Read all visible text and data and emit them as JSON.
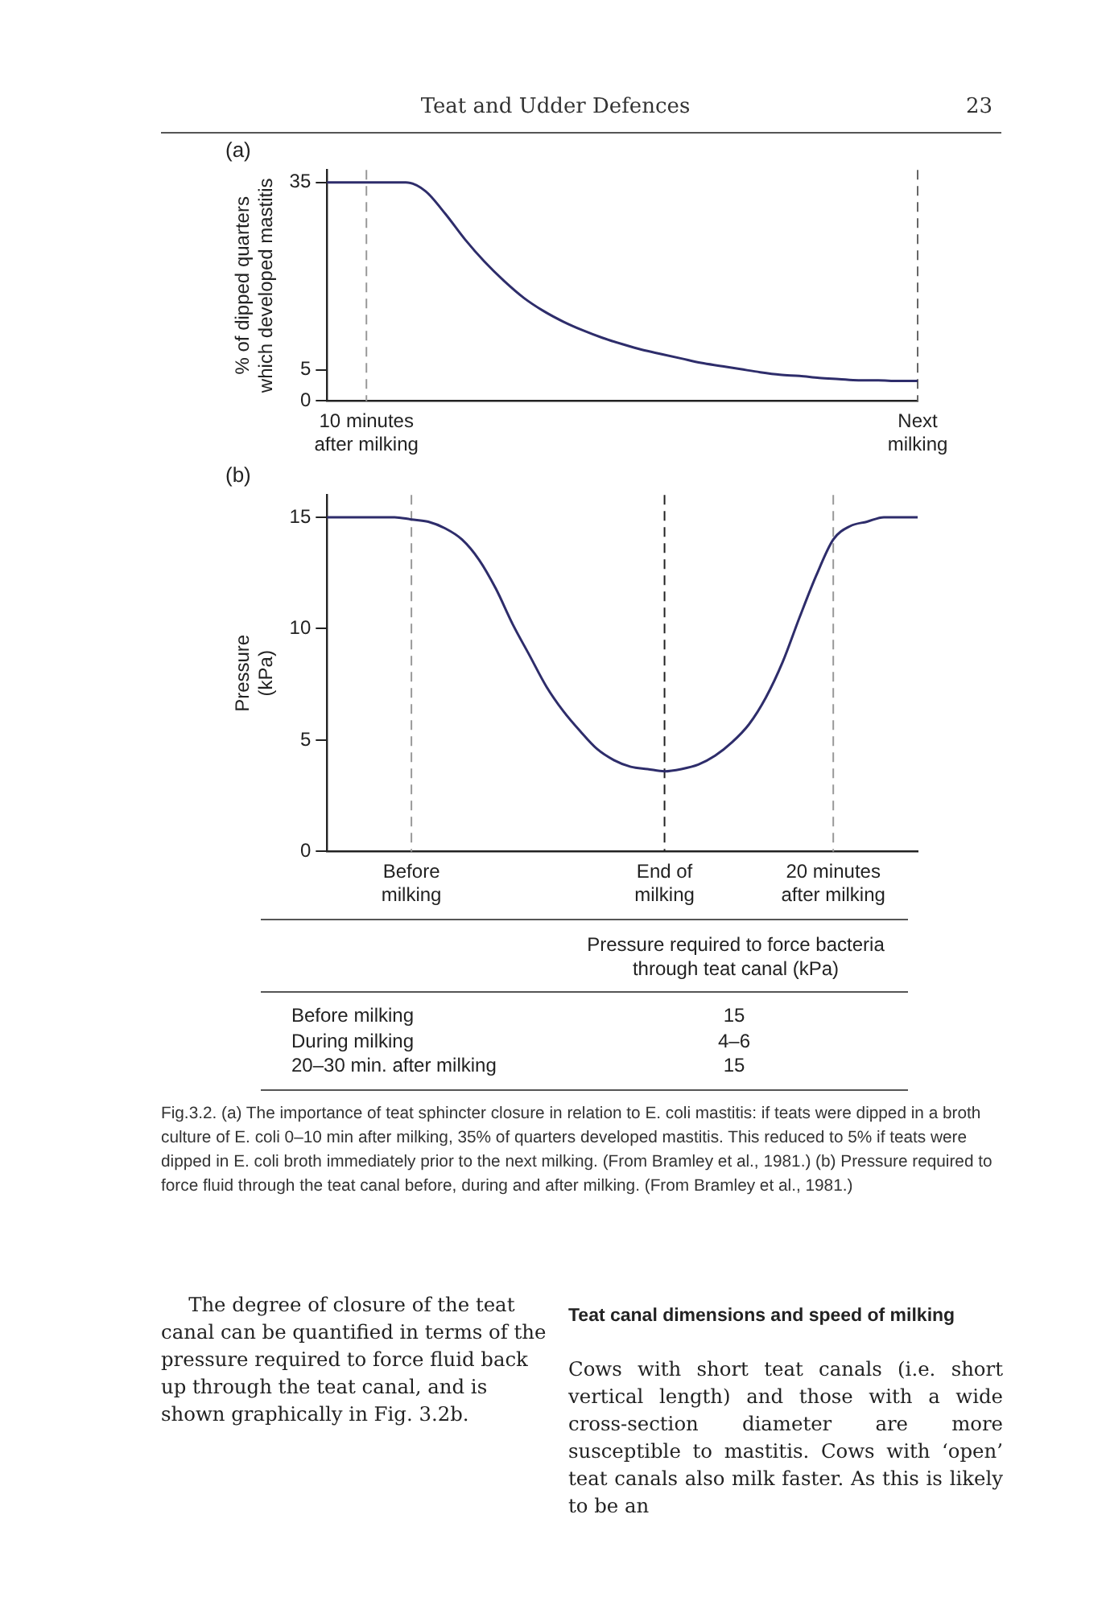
{
  "chart_data": [
    {
      "type": "line",
      "title": "(a)",
      "ylabel": "% of dipped quarters which developed mastitis",
      "categories": [
        null,
        null,
        "10 minutes after milking",
        null,
        null,
        null,
        null,
        null,
        null,
        null,
        null,
        null,
        null,
        null,
        null,
        null,
        null,
        null,
        null,
        null,
        null,
        null,
        null,
        null,
        null,
        null,
        null,
        null,
        null,
        null,
        "Next milking"
      ],
      "series": [
        {
          "color": "#2e2d6b",
          "values": [
            35,
            35,
            35,
            35,
            35,
            33.6,
            30,
            25.9,
            22.3,
            19.2,
            16.5,
            14.4,
            12.7,
            11.3,
            10.1,
            9.1,
            8.2,
            7.5,
            6.8,
            6.1,
            5.6,
            5.1,
            4.6,
            4.2,
            4,
            3.7,
            3.5,
            3.3,
            3.3,
            3.2,
            3.2
          ]
        }
      ],
      "ylim": [
        0,
        37
      ],
      "yticks": [
        0,
        5,
        35
      ],
      "grid": false,
      "legend": false,
      "ref_lines": [
        {
          "axis": "x",
          "value": "10 minutes after milking",
          "color": "#999999",
          "line_style": "dashed"
        },
        {
          "axis": "x",
          "value": "Next milking",
          "color": "#666666",
          "line_style": "dashed"
        }
      ],
      "annotations": [
        "Teat and Udder Defences",
        "23"
      ]
    },
    {
      "type": "line",
      "title": "(b)",
      "ylabel": "Pressure (kPa)",
      "categories": [
        null,
        null,
        null,
        null,
        null,
        "Before milking",
        null,
        null,
        null,
        null,
        null,
        null,
        null,
        null,
        null,
        null,
        null,
        null,
        null,
        null,
        "End of milking",
        null,
        null,
        null,
        null,
        null,
        null,
        null,
        null,
        null,
        "20 minutes after milking",
        null,
        null,
        null,
        null,
        null
      ],
      "series": [
        {
          "color": "#2e2d6b",
          "values": [
            15,
            15,
            15,
            15,
            15,
            14.9,
            14.8,
            14.5,
            14,
            13.1,
            11.8,
            10.2,
            8.8,
            7.4,
            6.3,
            5.4,
            4.6,
            4.1,
            3.8,
            3.7,
            3.6,
            3.7,
            3.9,
            4.3,
            4.9,
            5.7,
            6.9,
            8.5,
            10.5,
            12.4,
            14,
            14.6,
            14.8,
            15,
            15,
            15
          ]
        }
      ],
      "ylim": [
        0,
        16
      ],
      "yticks": [
        0,
        5,
        10,
        15
      ],
      "grid": false,
      "legend": false,
      "ref_lines": [
        {
          "axis": "x",
          "value": "Before milking",
          "color": "#999999",
          "line_style": "dashed"
        },
        {
          "axis": "x",
          "value": "End of milking",
          "color": "#222222",
          "line_style": "dashed"
        },
        {
          "axis": "x",
          "value": "20 minutes after milking",
          "color": "#999999",
          "line_style": "dashed"
        }
      ],
      "annotations": [
        "Pressure required to force bacteria through teat canal (kPa)",
        "Before milking",
        "15",
        "During milking",
        "4–6",
        "20–30 min. after milking",
        "15",
        "Fig.3.2. (a) The importance of teat sphincter closure in relation to E. coli mastitis: if teats were dipped in a broth culture of E. coli 0–10 min after milking, 35% of quarters developed mastitis. This reduced to 5% if teats were dipped in E. coli broth immediately prior to the next milking. (From Bramley et al., 1981.) (b) Pressure required to force fluid through the teat canal before, during and after milking. (From Bramley et al., 1981.)",
        "The degree of closure of the teat canal can be quantified in terms of the pressure required to force fluid back up through the teat canal, and is shown graphically in Fig. 3.2b.",
        "Teat canal dimensions and speed of milking",
        "Cows with short teat canals (i.e. short vertical length) and those with a wide cross-section diameter are more susceptible to mastitis. Cows with ‘open’ teat canals also milk faster. As this is likely to be an"
      ]
    }
  ]
}
